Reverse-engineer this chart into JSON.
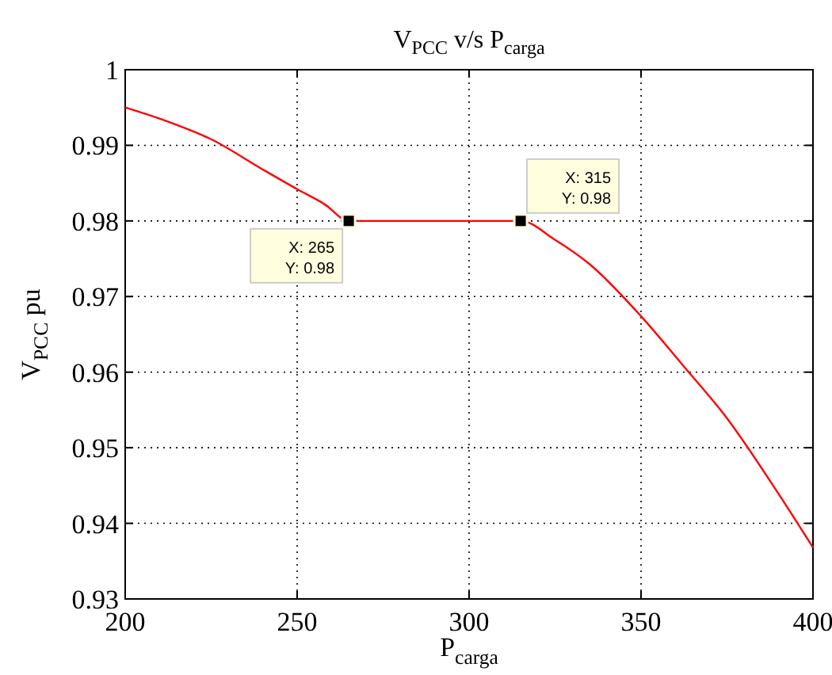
{
  "chart_data": {
    "type": "line",
    "title": "V$_{PCC}$ v/s P$_{carga}$",
    "xlabel": "P$_{carga}$",
    "ylabel": "V$_{PCC}$ pu",
    "xlim": [
      200,
      400
    ],
    "ylim": [
      0.93,
      1
    ],
    "xticks": [
      200,
      250,
      300,
      350,
      400
    ],
    "yticks": [
      0.93,
      0.94,
      0.95,
      0.96,
      0.97,
      0.98,
      0.99,
      1
    ],
    "grid": true,
    "line_style": "solid",
    "series": [
      {
        "color": "#ff0000",
        "x": [
          200,
          212,
          225,
          240,
          250,
          258,
          265,
          290,
          315,
          325,
          335,
          350,
          362,
          375,
          390,
          400
        ],
        "values": [
          0.995,
          0.9932,
          0.9908,
          0.9868,
          0.9842,
          0.9822,
          0.98,
          0.98,
          0.98,
          0.9775,
          0.9743,
          0.9674,
          0.961,
          0.9539,
          0.9439,
          0.9368
        ]
      },
      {
        "type": "scatter",
        "color": "#000000",
        "marker": "square",
        "x": [
          265,
          315
        ],
        "values": [
          0.98,
          0.98
        ]
      }
    ],
    "annotations": [
      {
        "text": "X: 265\nY: 0.98",
        "x": 265,
        "y": 0.98
      },
      {
        "text": "X: 315\nY: 0.98",
        "x": 315,
        "y": 0.98
      }
    ]
  }
}
